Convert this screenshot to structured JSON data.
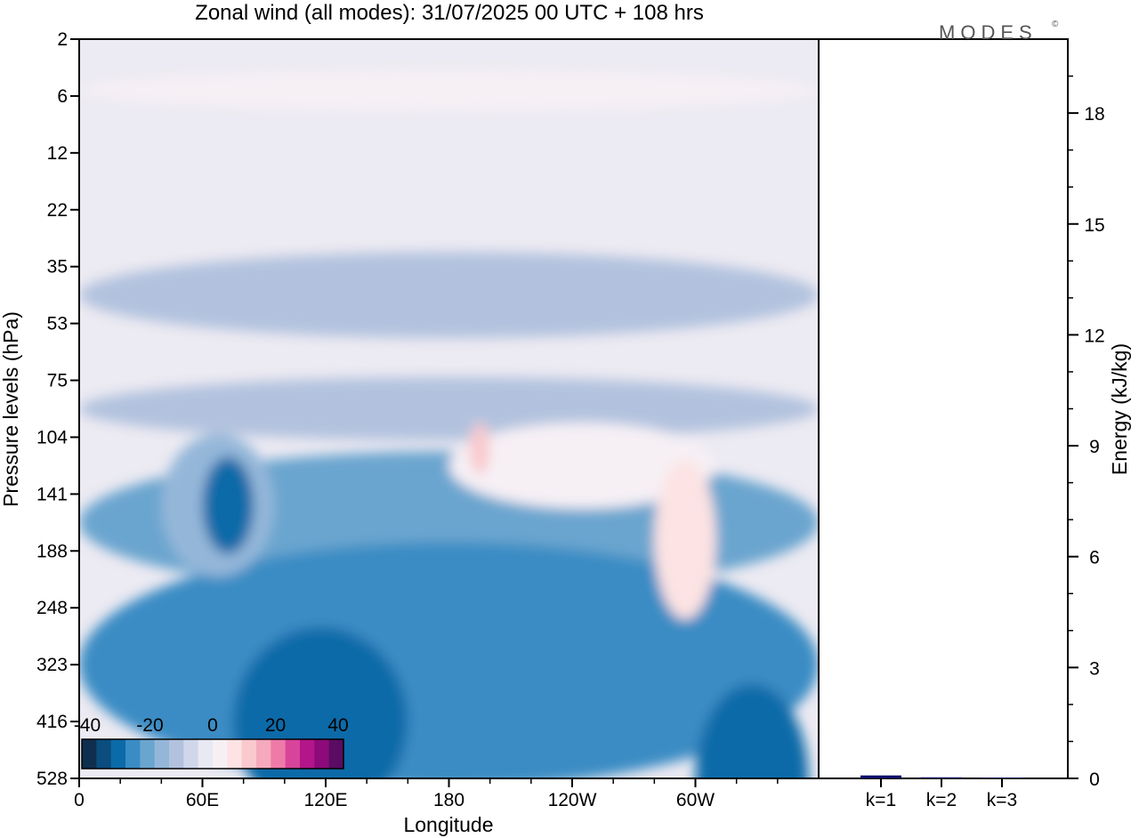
{
  "chart_data": [
    {
      "type": "heatmap",
      "title": "Zonal wind (all modes):  31/07/2025  00 UTC  + 108 hrs",
      "xlabel": "Longitude",
      "ylabel": "Pressure levels (hPa)",
      "x_ticks": [
        "0",
        "60E",
        "120E",
        "180",
        "120W",
        "60W"
      ],
      "x_tick_degrees": [
        0,
        60,
        120,
        180,
        240,
        300
      ],
      "x_range_degrees": [
        0,
        360
      ],
      "y_ticks": [
        "2",
        "6",
        "12",
        "22",
        "35",
        "53",
        "75",
        "104",
        "141",
        "188",
        "248",
        "323",
        "416",
        "528"
      ],
      "colorbar": {
        "tick_labels": [
          "-40",
          "-20",
          "0",
          "20",
          "40"
        ],
        "colors": [
          "#0f2f4f",
          "#0a4d7e",
          "#0b6aa8",
          "#3a8cc4",
          "#6aa5cf",
          "#94b7d9",
          "#b2c2de",
          "#d0d7ea",
          "#e9e9f3",
          "#f6f0f5",
          "#fde3e3",
          "#f9c9cd",
          "#f5a9bd",
          "#ee7aa8",
          "#d8449a",
          "#b4158a",
          "#8c0a7a",
          "#5a0b63"
        ]
      },
      "regions": [
        {
          "lon": [
            0,
            360
          ],
          "lev": [
            4.5,
            1
          ],
          "value": -2
        },
        {
          "lon": [
            0,
            360
          ],
          "lev": [
            4.5,
            1.2
          ],
          "value": -12
        },
        {
          "lon": [
            0,
            360
          ],
          "lev": [
            6.5,
            0.8
          ],
          "value": -14
        },
        {
          "lon": [
            0,
            360
          ],
          "lev": [
            8.5,
            2.2
          ],
          "value": -22
        },
        {
          "lon": [
            0,
            360
          ],
          "lev": [
            11,
            4
          ],
          "value": -26
        },
        {
          "lon": [
            75,
            160
          ],
          "lev": [
            12,
            3
          ],
          "value": -32
        },
        {
          "lon": [
            300,
            355
          ],
          "lev": [
            13,
            3
          ],
          "value": -34
        },
        {
          "lon": [
            0,
            360
          ],
          "lev": [
            0.9,
            0.4
          ],
          "value": 4
        },
        {
          "lon": [
            180,
            310
          ],
          "lev": [
            7.5,
            1.2
          ],
          "value": 4
        },
        {
          "lon": [
            190,
            200
          ],
          "lev": [
            7.2,
            0.6
          ],
          "value": 12
        },
        {
          "lon": [
            280,
            310
          ],
          "lev": [
            8.8,
            2.5
          ],
          "value": 8
        },
        {
          "lon": [
            40,
            95
          ],
          "lev": [
            8.2,
            2.2
          ],
          "value": -18
        },
        {
          "lon": [
            60,
            85
          ],
          "lev": [
            8.2,
            1.4
          ],
          "value": -34
        }
      ]
    },
    {
      "type": "bar",
      "ylabel": "Energy (kJ/kg)",
      "categories": [
        "k=1",
        "k=2",
        "k=3"
      ],
      "values": [
        0.08,
        0.03,
        0.02
      ],
      "ylim": [
        0,
        20
      ],
      "y_ticks": [
        0,
        3,
        6,
        9,
        12,
        15,
        18
      ],
      "bar_color": "#0a0a6a"
    }
  ],
  "logo_text": "MODES",
  "logo_mark": "©"
}
